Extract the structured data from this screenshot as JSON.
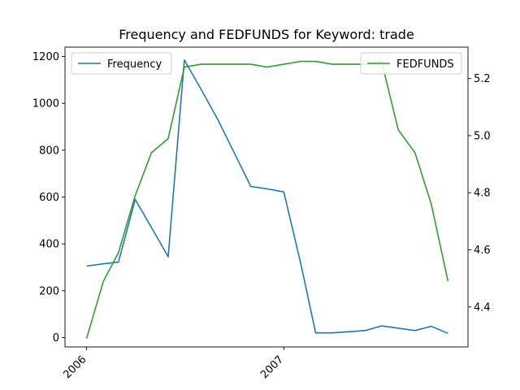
{
  "chart_data": {
    "type": "line",
    "title": "Frequency and FEDFUNDS for Keyword: trade",
    "xlabel": "",
    "ylabel_left": "",
    "ylabel_right": "",
    "x_ticks": [
      "2006",
      "2007"
    ],
    "y_left_ticks": [
      0,
      200,
      400,
      600,
      800,
      1000,
      1200
    ],
    "y_right_ticks": [
      4.4,
      4.6,
      4.8,
      5.0,
      5.2
    ],
    "y_left_range": [
      -40,
      1240
    ],
    "y_right_range": [
      4.26,
      5.31
    ],
    "x_range": [
      "2005-11-22",
      "2007-12-08"
    ],
    "grid": false,
    "series": [
      {
        "name": "Frequency",
        "axis": "left",
        "color": "#1f77b4",
        "points": [
          {
            "x": "2006-01-01",
            "y": 305
          },
          {
            "x": "2006-02-01",
            "y": 315
          },
          {
            "x": "2006-03-01",
            "y": 322
          },
          {
            "x": "2006-04-01",
            "y": 590
          },
          {
            "x": "2006-05-01",
            "y": 470
          },
          {
            "x": "2006-06-01",
            "y": 345
          },
          {
            "x": "2006-07-01",
            "y": 1185
          },
          {
            "x": "2006-08-01",
            "y": 1060
          },
          {
            "x": "2006-09-01",
            "y": 930
          },
          {
            "x": "2006-10-01",
            "y": 790
          },
          {
            "x": "2006-11-01",
            "y": 645
          },
          {
            "x": "2006-12-01",
            "y": 635
          },
          {
            "x": "2007-01-01",
            "y": 622
          },
          {
            "x": "2007-02-01",
            "y": 320
          },
          {
            "x": "2007-03-01",
            "y": 20
          },
          {
            "x": "2007-04-01",
            "y": 20
          },
          {
            "x": "2007-05-01",
            "y": 25
          },
          {
            "x": "2007-06-01",
            "y": 30
          },
          {
            "x": "2007-07-01",
            "y": 50
          },
          {
            "x": "2007-08-01",
            "y": 40
          },
          {
            "x": "2007-09-01",
            "y": 30
          },
          {
            "x": "2007-10-01",
            "y": 48
          },
          {
            "x": "2007-11-01",
            "y": 18
          }
        ]
      },
      {
        "name": "FEDFUNDS",
        "axis": "right",
        "color": "#2ca02c",
        "points": [
          {
            "x": "2006-01-01",
            "y": 4.29
          },
          {
            "x": "2006-02-01",
            "y": 4.49
          },
          {
            "x": "2006-03-01",
            "y": 4.59
          },
          {
            "x": "2006-04-01",
            "y": 4.79
          },
          {
            "x": "2006-05-01",
            "y": 4.94
          },
          {
            "x": "2006-06-01",
            "y": 4.99
          },
          {
            "x": "2006-07-01",
            "y": 5.24
          },
          {
            "x": "2006-08-01",
            "y": 5.25
          },
          {
            "x": "2006-09-01",
            "y": 5.25
          },
          {
            "x": "2006-10-01",
            "y": 5.25
          },
          {
            "x": "2006-11-01",
            "y": 5.25
          },
          {
            "x": "2006-12-01",
            "y": 5.24
          },
          {
            "x": "2007-01-01",
            "y": 5.25
          },
          {
            "x": "2007-02-01",
            "y": 5.26
          },
          {
            "x": "2007-03-01",
            "y": 5.26
          },
          {
            "x": "2007-04-01",
            "y": 5.25
          },
          {
            "x": "2007-05-01",
            "y": 5.25
          },
          {
            "x": "2007-06-01",
            "y": 5.25
          },
          {
            "x": "2007-07-01",
            "y": 5.26
          },
          {
            "x": "2007-08-01",
            "y": 5.02
          },
          {
            "x": "2007-09-01",
            "y": 4.94
          },
          {
            "x": "2007-10-01",
            "y": 4.76
          },
          {
            "x": "2007-11-01",
            "y": 4.49
          }
        ]
      }
    ],
    "legends": [
      {
        "series": "Frequency",
        "placement": "upper-left"
      },
      {
        "series": "FEDFUNDS",
        "placement": "upper-right"
      }
    ]
  }
}
